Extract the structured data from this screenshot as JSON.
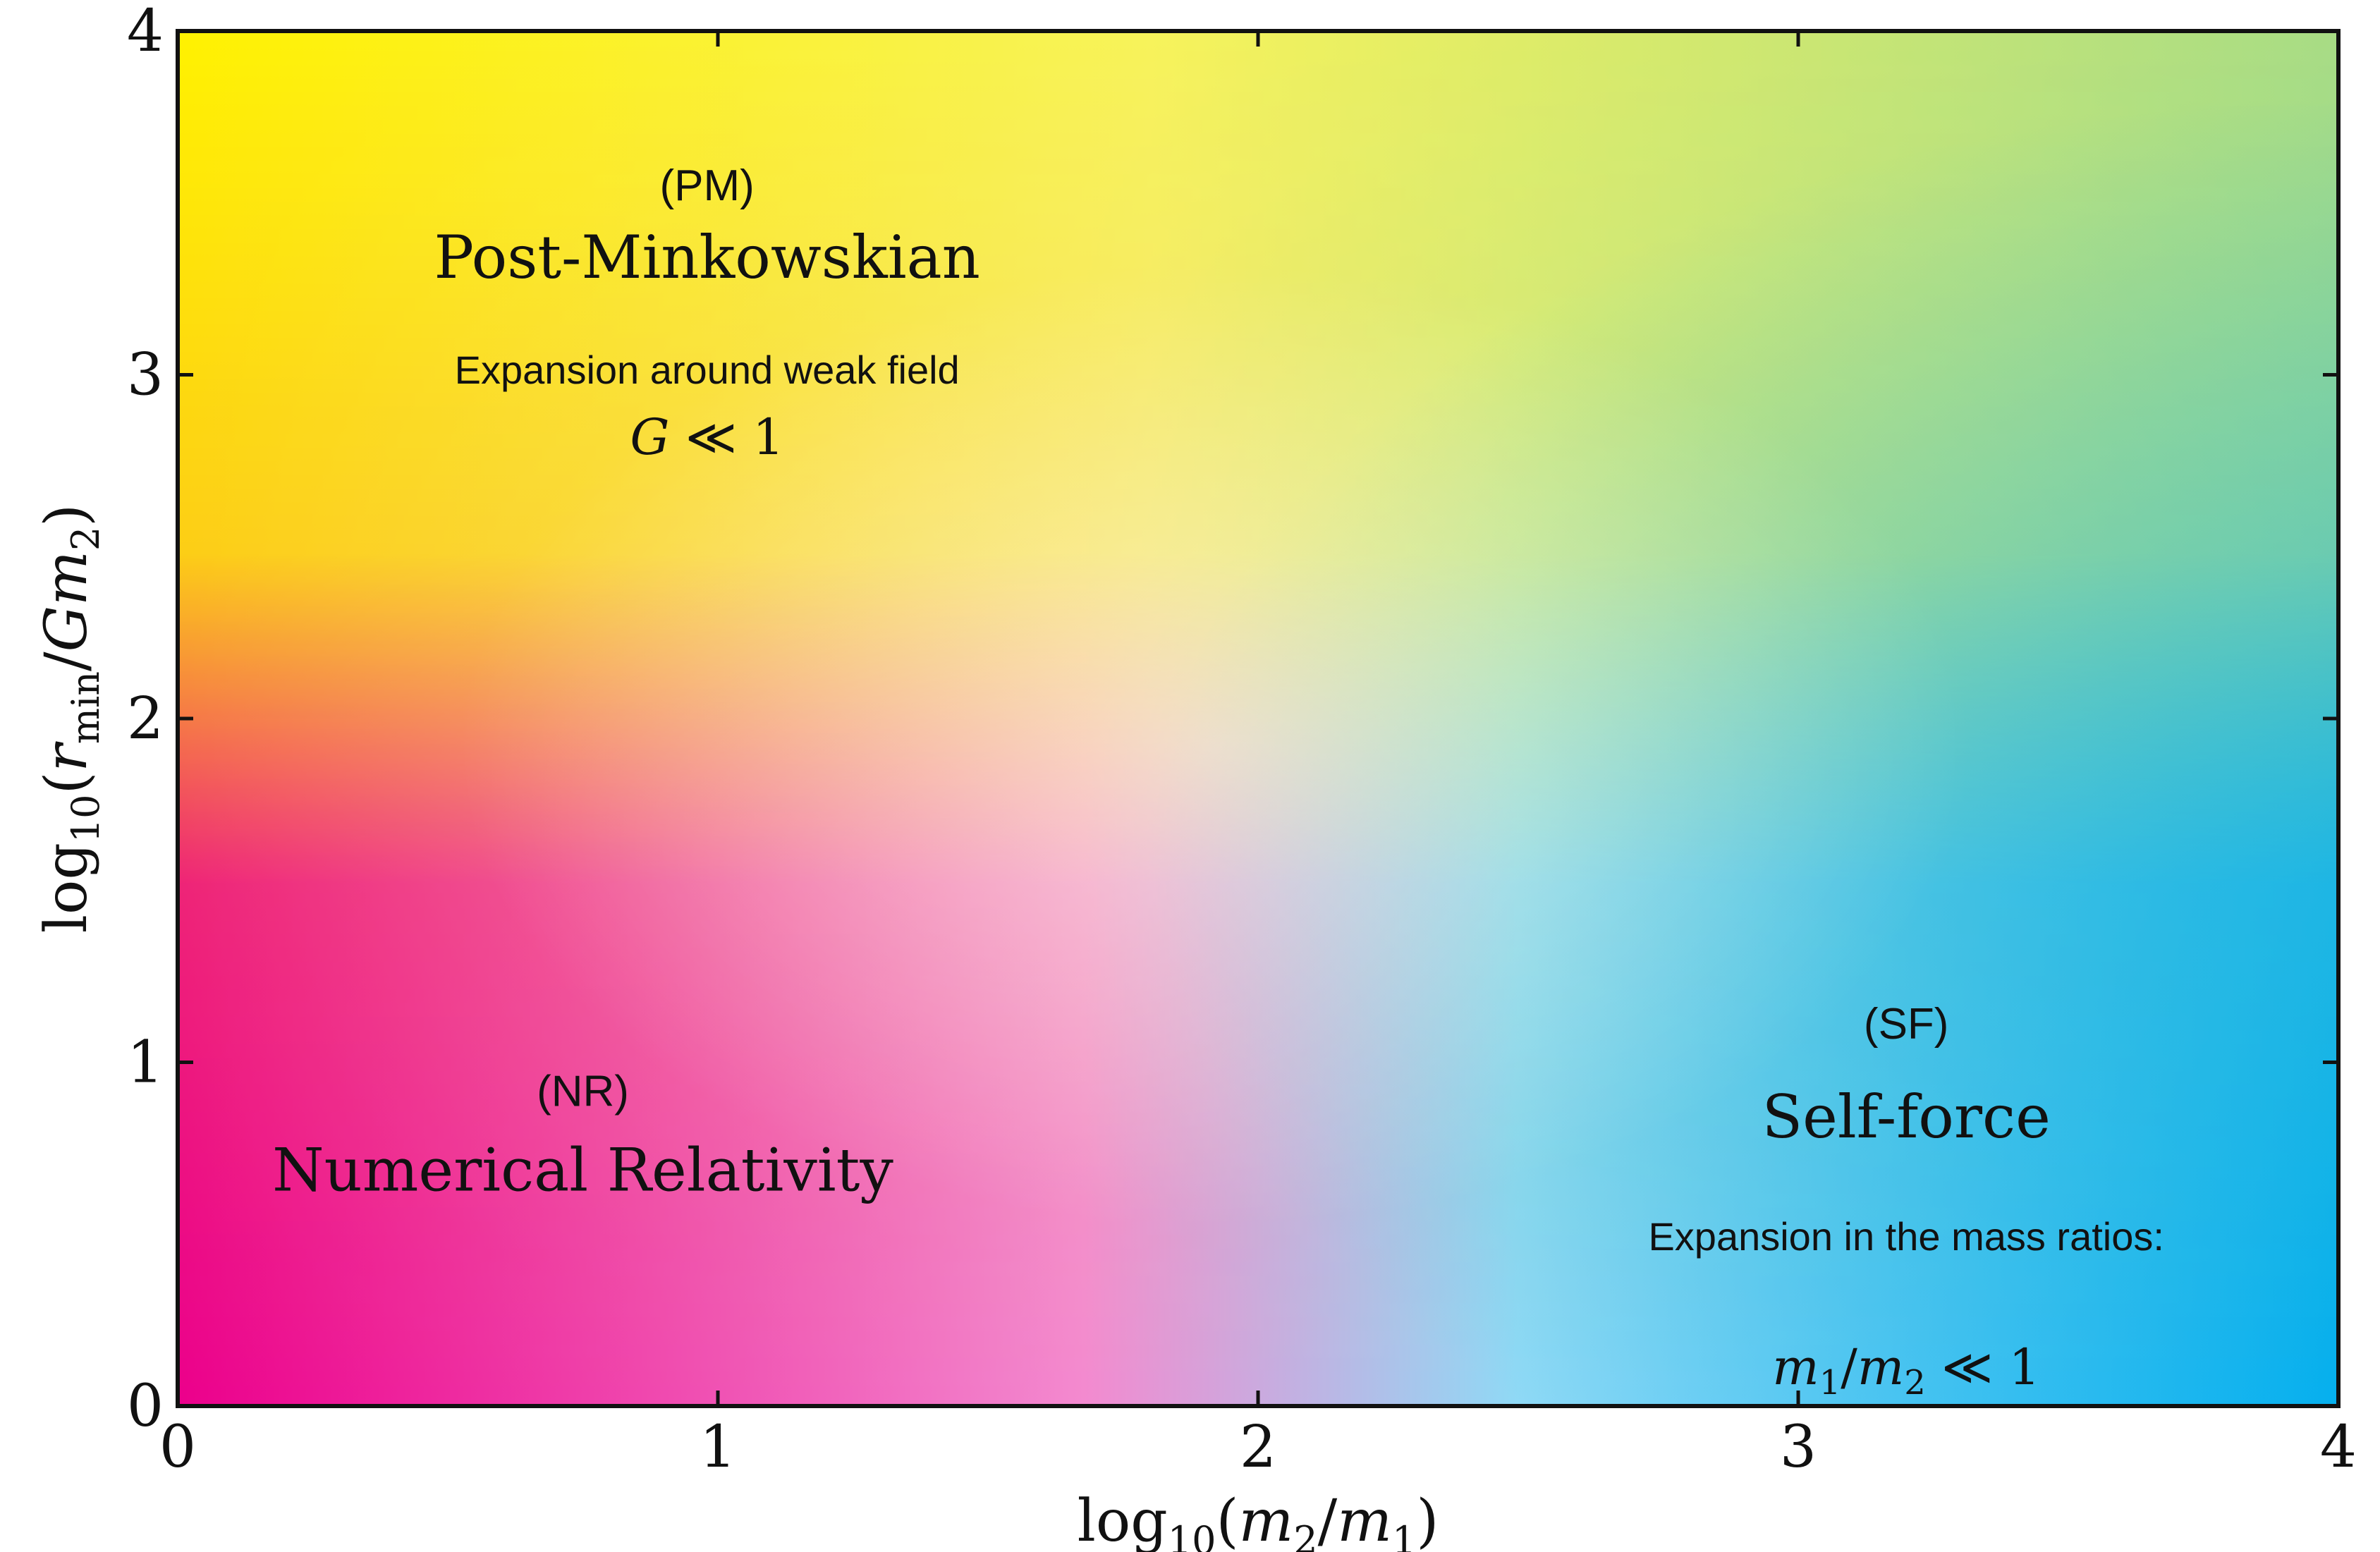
{
  "chart_data": {
    "type": "heatmap",
    "xlabel": "log10(m2/m1)",
    "ylabel": "log10(rmin/Gm2)",
    "xlim": [
      0,
      4
    ],
    "ylim": [
      0,
      4
    ],
    "x_ticks": [
      "0",
      "1",
      "2",
      "3",
      "4"
    ],
    "y_ticks": [
      "0",
      "1",
      "2",
      "3",
      "4"
    ],
    "grid": false,
    "colors": {
      "top_left": "#fff200",
      "top_right": "#a8dc85",
      "bottom_left": "#ec008c",
      "bottom_right": "#00aeef",
      "center": "#f7f3d0"
    },
    "regions": [
      {
        "abbreviation": "(PM)",
        "name": "Post-Minkowskian",
        "description": "Expansion around weak field",
        "condition": "G ≪ 1",
        "x": 0.98,
        "y": 3.2
      },
      {
        "abbreviation": "(NR)",
        "name": "Numerical Relativity",
        "description": "",
        "condition": "",
        "x": 0.75,
        "y": 0.75
      },
      {
        "abbreviation": "(SF)",
        "name": "Self-force",
        "description": "Expansion in the mass ratios:",
        "condition": "m1/m2 ≪ 1",
        "x": 3.2,
        "y": 0.7
      }
    ]
  }
}
